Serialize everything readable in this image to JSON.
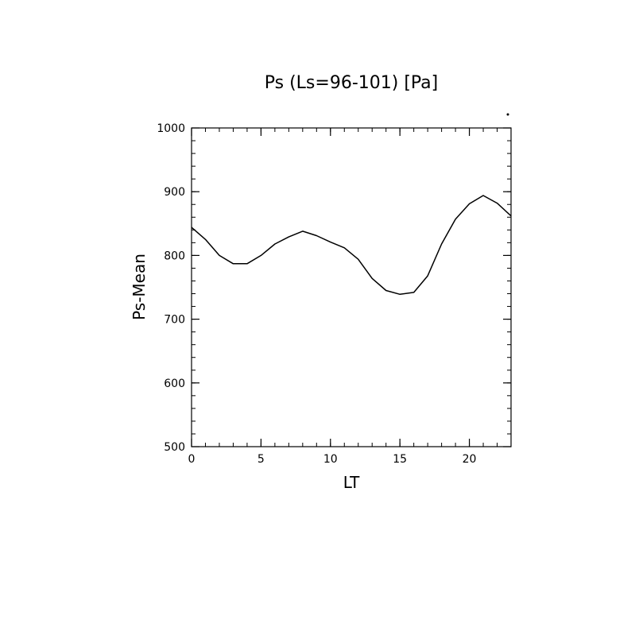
{
  "chart_data": {
    "type": "line",
    "title": "Ps (Ls=96-101) [Pa]",
    "xlabel": "LT",
    "ylabel": "Ps-Mean",
    "xlim": [
      0,
      23
    ],
    "ylim": [
      500,
      1000
    ],
    "x_ticks": [
      0,
      5,
      10,
      15,
      20
    ],
    "y_ticks": [
      500,
      600,
      700,
      800,
      900,
      1000
    ],
    "grid": false,
    "series": [
      {
        "x": [
          0,
          1,
          2,
          3,
          4,
          5,
          6,
          7,
          8,
          9,
          10,
          11,
          12,
          13,
          14,
          15,
          16,
          17,
          18,
          19,
          20,
          21,
          22,
          23
        ],
        "values": [
          844,
          825,
          800,
          787,
          787,
          800,
          818,
          829,
          838,
          831,
          821,
          812,
          794,
          764,
          745,
          739,
          742,
          768,
          818,
          857,
          881,
          894,
          882,
          862
        ],
        "color": "#000000"
      }
    ]
  }
}
